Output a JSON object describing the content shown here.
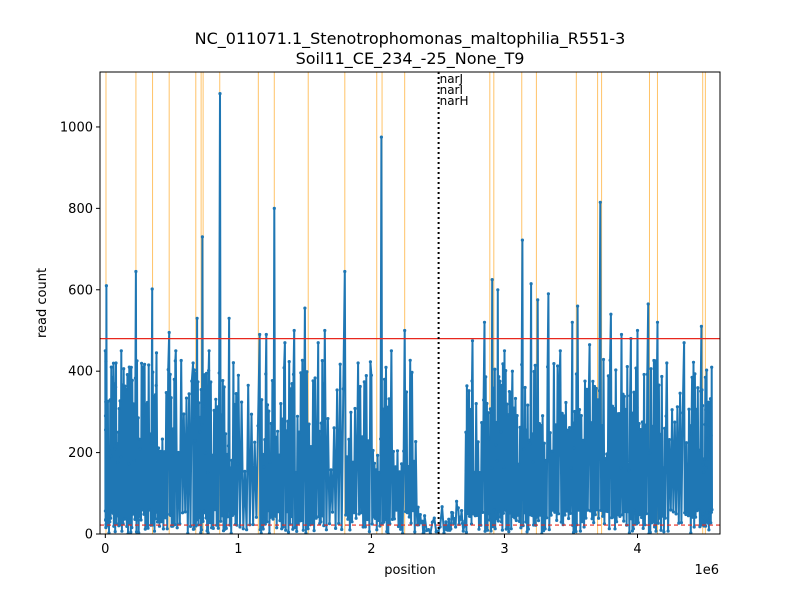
{
  "chart_data": {
    "type": "line",
    "title": "NC_011071.1_Stenotrophomonas_maltophilia_R551-3",
    "subtitle": "Soil11_CE_234_-25_None_T9",
    "xlabel": "position",
    "ylabel": "read count",
    "x_offset_label": "1e6",
    "xlim": [
      -40000,
      4620000
    ],
    "ylim": [
      0,
      1135
    ],
    "x_ticks": [
      0,
      1000000,
      2000000,
      3000000,
      4000000
    ],
    "x_tick_labels": [
      "0",
      "1",
      "2",
      "3",
      "4"
    ],
    "y_ticks": [
      0,
      200,
      400,
      600,
      800,
      1000
    ],
    "y_tick_labels": [
      "0",
      "200",
      "400",
      "600",
      "800",
      "1000"
    ],
    "thresholds": {
      "upper": 480,
      "lower": 22,
      "upper_color": "#e8281e",
      "lower_color": "#e8281e"
    },
    "marker": {
      "x": 2505000,
      "labels": [
        "narJ",
        "narI",
        "narH"
      ]
    },
    "highlight_color": "#ffb84d",
    "highlight_positions": [
      5000,
      230000,
      355000,
      480000,
      680000,
      720000,
      735000,
      860000,
      1150000,
      1270000,
      1525000,
      1800000,
      2040000,
      2080000,
      2250000,
      2890000,
      2920000,
      3130000,
      3240000,
      3540000,
      3700000,
      3730000,
      4090000,
      4150000,
      4490000,
      4510000
    ],
    "series": [
      {
        "color": "#1f77b4",
        "peaks": [
          [
            0,
            450
          ],
          [
            8000,
            610
          ],
          [
            45000,
            410
          ],
          [
            80000,
            420
          ],
          [
            120000,
            450
          ],
          [
            180000,
            410
          ],
          [
            230000,
            645
          ],
          [
            285000,
            410
          ],
          [
            352000,
            602
          ],
          [
            385000,
            445
          ],
          [
            480000,
            495
          ],
          [
            530000,
            450
          ],
          [
            660000,
            420
          ],
          [
            690000,
            530
          ],
          [
            730000,
            730
          ],
          [
            780000,
            450
          ],
          [
            862000,
            1082
          ],
          [
            930000,
            530
          ],
          [
            1000000,
            390
          ],
          [
            1160000,
            490
          ],
          [
            1210000,
            490
          ],
          [
            1270000,
            800
          ],
          [
            1350000,
            470
          ],
          [
            1420000,
            500
          ],
          [
            1500000,
            555
          ],
          [
            1600000,
            470
          ],
          [
            1650000,
            500
          ],
          [
            1800000,
            645
          ],
          [
            1900000,
            420
          ],
          [
            2000000,
            390
          ],
          [
            2075000,
            975
          ],
          [
            2150000,
            450
          ],
          [
            2250000,
            500
          ],
          [
            2340000,
            60
          ],
          [
            2400000,
            45
          ],
          [
            2560000,
            30
          ],
          [
            2640000,
            80
          ],
          [
            2710000,
            250
          ],
          [
            2760000,
            475
          ],
          [
            2850000,
            520
          ],
          [
            2908000,
            625
          ],
          [
            2950000,
            600
          ],
          [
            3000000,
            450
          ],
          [
            3060000,
            400
          ],
          [
            3135000,
            722
          ],
          [
            3200000,
            615
          ],
          [
            3250000,
            575
          ],
          [
            3330000,
            590
          ],
          [
            3420000,
            450
          ],
          [
            3510000,
            520
          ],
          [
            3550000,
            560
          ],
          [
            3640000,
            465
          ],
          [
            3720000,
            815
          ],
          [
            3800000,
            540
          ],
          [
            3880000,
            490
          ],
          [
            3950000,
            480
          ],
          [
            4000000,
            500
          ],
          [
            4080000,
            565
          ],
          [
            4150000,
            520
          ],
          [
            4220000,
            420
          ],
          [
            4350000,
            470
          ],
          [
            4410000,
            385
          ],
          [
            4480000,
            510
          ],
          [
            4510000,
            385
          ],
          [
            4530000,
            185
          ],
          [
            4560000,
            60
          ]
        ]
      }
    ]
  }
}
